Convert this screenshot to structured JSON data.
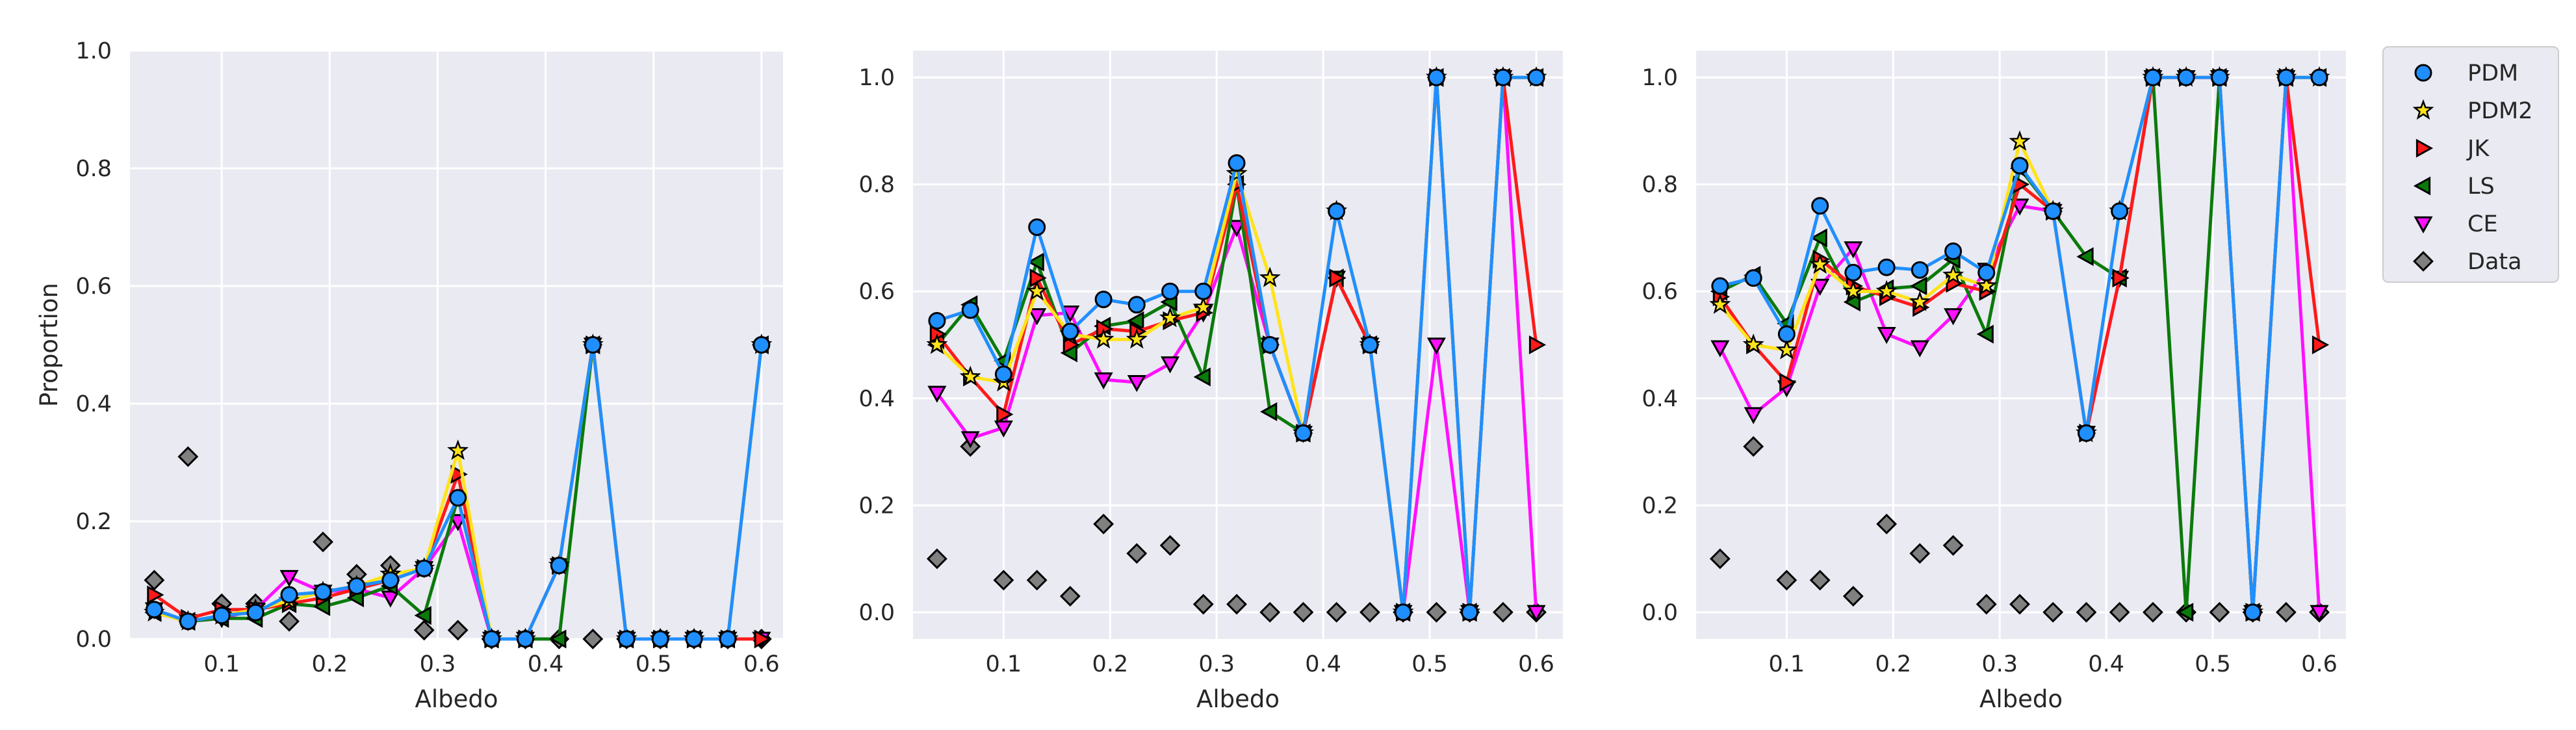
{
  "colors": {
    "plot_bg": "#eaeaf2",
    "grid": "#ffffff",
    "tick_text": "#262626",
    "PDM": "#1f8fff",
    "PDM2": "#ffe31a",
    "JK": "#ff1a1a",
    "LS": "#0b7a0b",
    "CE": "#ff10ff",
    "Data": "#808080"
  },
  "legend": {
    "placement": "outside-right",
    "entries": [
      {
        "key": "PDM",
        "label": "PDM",
        "marker": "circle"
      },
      {
        "key": "PDM2",
        "label": "PDM2",
        "marker": "star"
      },
      {
        "key": "JK",
        "label": "JK",
        "marker": "triangle-right"
      },
      {
        "key": "LS",
        "label": "LS",
        "marker": "triangle-left"
      },
      {
        "key": "CE",
        "label": "CE",
        "marker": "triangle-down"
      },
      {
        "key": "Data",
        "label": "Data",
        "marker": "diamond"
      }
    ]
  },
  "chart_data": [
    {
      "type": "line",
      "xlabel": "Albedo",
      "ylabel": "Proportion",
      "xlim": [
        0.015,
        0.62
      ],
      "ylim": [
        0.0,
        1.0
      ],
      "xticks": [
        "0.1",
        "0.2",
        "0.3",
        "0.4",
        "0.5",
        "0.6"
      ],
      "yticks": [
        "0.0",
        "0.2",
        "0.4",
        "0.6",
        "0.8",
        "1.0"
      ],
      "grid": true,
      "x": [
        0.0375,
        0.0688,
        0.1,
        0.1313,
        0.1625,
        0.1938,
        0.225,
        0.2563,
        0.2875,
        0.3188,
        0.35,
        0.3813,
        0.4125,
        0.4438,
        0.475,
        0.5063,
        0.5375,
        0.5688,
        0.6
      ],
      "series": [
        {
          "name": "PDM",
          "values": [
            0.05,
            0.03,
            0.04,
            0.045,
            0.075,
            0.08,
            0.09,
            0.1,
            0.12,
            0.24,
            0.0,
            0.0,
            0.125,
            0.5,
            0.0,
            0.0,
            0.0,
            0.0,
            0.5
          ]
        },
        {
          "name": "PDM2",
          "values": [
            0.045,
            0.03,
            0.04,
            0.05,
            0.065,
            0.08,
            0.09,
            0.11,
            0.12,
            0.32,
            0.0,
            0.0,
            0.125,
            0.5,
            0.0,
            0.0,
            0.0,
            0.0,
            0.5
          ]
        },
        {
          "name": "JK",
          "values": [
            0.075,
            0.035,
            0.05,
            0.05,
            0.06,
            0.07,
            0.085,
            0.1,
            0.12,
            0.28,
            0.0,
            0.0,
            0.125,
            0.5,
            0.0,
            0.0,
            0.0,
            0.0,
            0.0
          ]
        },
        {
          "name": "LS",
          "values": [
            0.045,
            0.03,
            0.035,
            0.035,
            0.06,
            0.055,
            0.07,
            0.09,
            0.04,
            0.24,
            0.0,
            0.0,
            0.0,
            0.5,
            0.0,
            0.0,
            0.0,
            0.0,
            0.5
          ]
        },
        {
          "name": "CE",
          "values": [
            0.05,
            0.03,
            0.035,
            0.05,
            0.105,
            0.08,
            0.085,
            0.07,
            0.12,
            0.2,
            0.0,
            0.0,
            0.125,
            0.5,
            0.0,
            0.0,
            0.0,
            0.0,
            0.0
          ]
        },
        {
          "name": "Data",
          "values": [
            0.1,
            0.31,
            0.06,
            0.06,
            0.03,
            0.165,
            0.11,
            0.125,
            0.015,
            0.015,
            0.0,
            0.0,
            0.0,
            0.0,
            0.0,
            0.0,
            0.0,
            0.0,
            0.0
          ]
        }
      ]
    },
    {
      "type": "line",
      "xlabel": "Albedo",
      "ylabel": "",
      "xlim": [
        0.015,
        0.625
      ],
      "ylim": [
        -0.05,
        1.05
      ],
      "xticks": [
        "0.1",
        "0.2",
        "0.3",
        "0.4",
        "0.5",
        "0.6"
      ],
      "yticks": [
        "0.0",
        "0.2",
        "0.4",
        "0.6",
        "0.8",
        "1.0"
      ],
      "grid": true,
      "x": [
        0.0375,
        0.0688,
        0.1,
        0.1313,
        0.1625,
        0.1938,
        0.225,
        0.2563,
        0.2875,
        0.3188,
        0.35,
        0.3813,
        0.4125,
        0.4438,
        0.475,
        0.5063,
        0.5375,
        0.5688,
        0.6
      ],
      "series": [
        {
          "name": "PDM",
          "values": [
            0.545,
            0.565,
            0.445,
            0.72,
            0.525,
            0.585,
            0.575,
            0.6,
            0.6,
            0.84,
            0.5,
            0.335,
            0.75,
            0.5,
            0.0,
            1.0,
            0.0,
            1.0,
            1.0
          ]
        },
        {
          "name": "PDM2",
          "values": [
            0.5,
            0.44,
            0.43,
            0.6,
            0.52,
            0.51,
            0.51,
            0.55,
            0.57,
            0.82,
            0.625,
            0.335,
            0.75,
            0.5,
            0.0,
            1.0,
            0.0,
            1.0,
            1.0
          ]
        },
        {
          "name": "JK",
          "values": [
            0.52,
            0.44,
            0.37,
            0.625,
            0.5,
            0.53,
            0.525,
            0.545,
            0.56,
            0.8,
            0.5,
            0.335,
            0.625,
            0.5,
            0.0,
            1.0,
            0.0,
            1.0,
            0.5
          ]
        },
        {
          "name": "LS",
          "values": [
            0.5,
            0.575,
            0.47,
            0.655,
            0.485,
            0.535,
            0.545,
            0.58,
            0.44,
            0.8,
            0.375,
            0.335,
            0.625,
            0.5,
            0.0,
            1.0,
            0.0,
            1.0,
            1.0
          ]
        },
        {
          "name": "CE",
          "values": [
            0.41,
            0.325,
            0.345,
            0.555,
            0.56,
            0.435,
            0.43,
            0.465,
            0.56,
            0.72,
            0.5,
            0.335,
            0.625,
            0.5,
            0.0,
            0.5,
            0.0,
            1.0,
            0.0
          ]
        },
        {
          "name": "Data",
          "values": [
            0.1,
            0.31,
            0.06,
            0.06,
            0.03,
            0.165,
            0.11,
            0.125,
            0.015,
            0.015,
            0.0,
            0.0,
            0.0,
            0.0,
            0.0,
            0.0,
            0.0,
            0.0,
            0.0
          ]
        }
      ]
    },
    {
      "type": "line",
      "xlabel": "Albedo",
      "ylabel": "",
      "xlim": [
        0.015,
        0.625
      ],
      "ylim": [
        -0.05,
        1.05
      ],
      "xticks": [
        "0.1",
        "0.2",
        "0.3",
        "0.4",
        "0.5",
        "0.6"
      ],
      "yticks": [
        "0.0",
        "0.2",
        "0.4",
        "0.6",
        "0.8",
        "1.0"
      ],
      "grid": true,
      "x": [
        0.0375,
        0.0688,
        0.1,
        0.1313,
        0.1625,
        0.1938,
        0.225,
        0.2563,
        0.2875,
        0.3188,
        0.35,
        0.3813,
        0.4125,
        0.4438,
        0.475,
        0.5063,
        0.5375,
        0.5688,
        0.6
      ],
      "series": [
        {
          "name": "PDM",
          "values": [
            0.61,
            0.625,
            0.52,
            0.76,
            0.635,
            0.645,
            0.64,
            0.675,
            0.635,
            0.835,
            0.75,
            0.335,
            0.75,
            1.0,
            1.0,
            1.0,
            0.0,
            1.0,
            1.0
          ]
        },
        {
          "name": "PDM2",
          "values": [
            0.575,
            0.5,
            0.49,
            0.65,
            0.6,
            0.6,
            0.58,
            0.63,
            0.61,
            0.88,
            0.75,
            0.335,
            0.75,
            1.0,
            1.0,
            1.0,
            0.0,
            1.0,
            1.0
          ]
        },
        {
          "name": "JK",
          "values": [
            0.59,
            0.5,
            0.43,
            0.66,
            0.61,
            0.59,
            0.57,
            0.615,
            0.6,
            0.8,
            0.75,
            0.335,
            0.625,
            1.0,
            1.0,
            1.0,
            0.0,
            1.0,
            0.5
          ]
        },
        {
          "name": "LS",
          "values": [
            0.6,
            0.63,
            0.54,
            0.7,
            0.58,
            0.605,
            0.61,
            0.66,
            0.52,
            0.83,
            0.75,
            0.665,
            0.625,
            1.0,
            0.0,
            1.0,
            0.0,
            1.0,
            1.0
          ]
        },
        {
          "name": "CE",
          "values": [
            0.495,
            0.37,
            0.42,
            0.61,
            0.68,
            0.52,
            0.495,
            0.555,
            0.64,
            0.76,
            0.75,
            0.335,
            0.625,
            1.0,
            1.0,
            1.0,
            0.0,
            1.0,
            0.0
          ]
        },
        {
          "name": "Data",
          "values": [
            0.1,
            0.31,
            0.06,
            0.06,
            0.03,
            0.165,
            0.11,
            0.125,
            0.015,
            0.015,
            0.0,
            0.0,
            0.0,
            0.0,
            0.0,
            0.0,
            0.0,
            0.0,
            0.0
          ]
        }
      ]
    }
  ]
}
